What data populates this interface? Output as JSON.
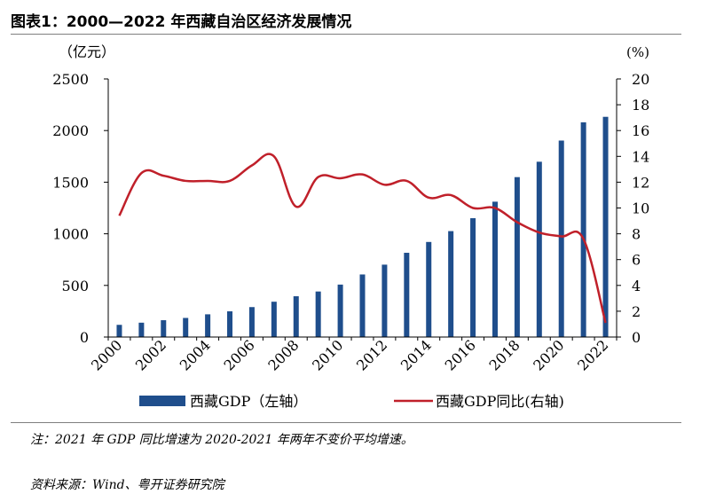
{
  "figure": {
    "title": "图表1：2000—2022 年西藏自治区经济发展情况",
    "note": "注：2021 年 GDP 同比增速为 2020-2021 年两年不变价平均增速。",
    "source": "资料来源：Wind、粤开证券研究院"
  },
  "chart_data": {
    "type": "bar",
    "left_axis_label": "（亿元）",
    "right_axis_label": "(%)",
    "categories": [
      "2000",
      "2001",
      "2002",
      "2003",
      "2004",
      "2005",
      "2006",
      "2007",
      "2008",
      "2009",
      "2010",
      "2011",
      "2012",
      "2013",
      "2014",
      "2015",
      "2016",
      "2017",
      "2018",
      "2019",
      "2020",
      "2021",
      "2022"
    ],
    "x_tick_labels": [
      "2000",
      "2002",
      "2004",
      "2006",
      "2008",
      "2010",
      "2012",
      "2014",
      "2016",
      "2018",
      "2020",
      "2022"
    ],
    "ylim_left": [
      0,
      2500
    ],
    "yticks_left": [
      0,
      500,
      1000,
      1500,
      2000,
      2500
    ],
    "ylim_right": [
      0,
      20
    ],
    "yticks_right": [
      0,
      2,
      4,
      6,
      8,
      10,
      12,
      14,
      16,
      18,
      20
    ],
    "series": [
      {
        "name": "西藏GDP（左轴）",
        "type": "bar",
        "axis": "left",
        "color": "#1f4e8c",
        "values": [
          118,
          139,
          163,
          185,
          220,
          249,
          290,
          342,
          395,
          441,
          508,
          606,
          701,
          816,
          921,
          1026,
          1151,
          1311,
          1549,
          1698,
          1903,
          2080,
          2133
        ]
      },
      {
        "name": "西藏GDP同比(右轴)",
        "type": "line",
        "axis": "right",
        "color": "#c0202a",
        "values": [
          9.4,
          12.7,
          12.5,
          12.1,
          12.1,
          12.1,
          13.3,
          14.0,
          10.1,
          12.4,
          12.3,
          12.6,
          11.8,
          12.1,
          10.8,
          11.0,
          10.0,
          10.0,
          8.9,
          8.1,
          7.8,
          7.6,
          1.1
        ]
      }
    ],
    "legend_placement": "bottom",
    "grid": false
  }
}
